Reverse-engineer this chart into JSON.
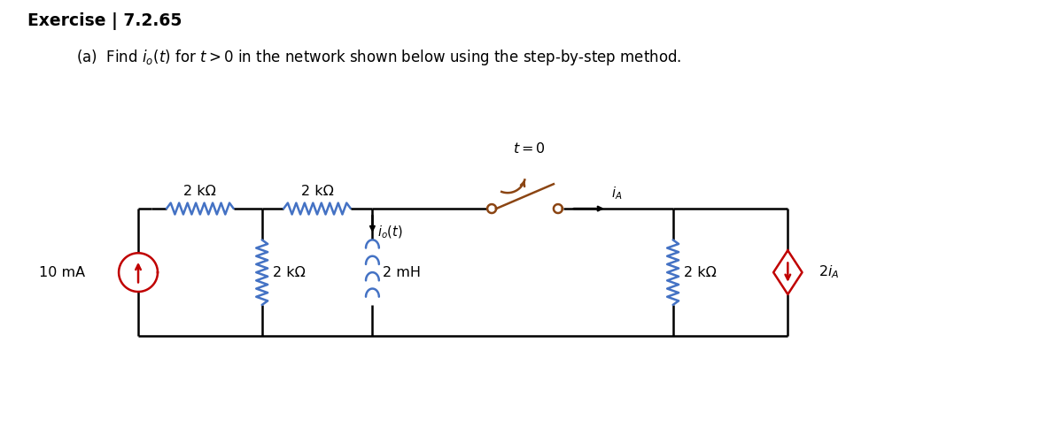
{
  "title_bold": "Exercise | 7.2.65",
  "subtitle": "(a)  Find $i_o(t)$ for $t > 0$ in the network shown below using the step-by-step method.",
  "bg_color": "#ffffff",
  "line_color": "#000000",
  "resistor_color": "#4472c4",
  "source_color": "#c00000",
  "inductor_color": "#4472c4",
  "switch_color": "#8B4513",
  "dep_source_color": "#c00000",
  "label_2kOhm_1": "2 kΩ",
  "label_2kOhm_2": "2 kΩ",
  "label_2kOhm_3": "2 kΩ",
  "label_2kOhm_4": "2 kΩ",
  "label_2mH": "2 mH",
  "label_10mA": "10 mA",
  "label_io": "$i_o(t)$",
  "label_iA": "$i_A$",
  "label_2iA": "$2i_A$",
  "label_t0": "$t = 0$",
  "fig_width": 12.0,
  "fig_height": 4.91
}
